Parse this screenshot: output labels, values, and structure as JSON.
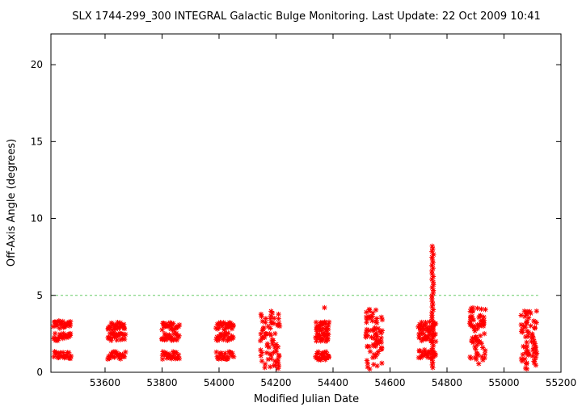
{
  "chart_data": {
    "type": "scatter",
    "title": "SLX 1744-299_300   INTEGRAL Galactic Bulge Monitoring.  Last Update: 22 Oct 2009 10:41",
    "xlabel": "Modified Julian Date",
    "ylabel": "Off-Axis Angle (degrees)",
    "xlim": [
      53410,
      55200
    ],
    "ylim": [
      0,
      22
    ],
    "xticks": [
      "53600",
      "53800",
      "54000",
      "54200",
      "54400",
      "54600",
      "54800",
      "55000",
      "55200"
    ],
    "yticks": [
      "0",
      "5",
      "10",
      "15",
      "20"
    ],
    "reference_line": {
      "y": 5,
      "x_range": [
        53410,
        55120
      ],
      "color": "#66cc66",
      "style": "dashed"
    },
    "marker": {
      "symbol": "asterisk",
      "color": "#ff0000"
    },
    "grid": false,
    "series": [
      {
        "clusters": [
          {
            "x_range": [
              53420,
              53480
            ],
            "y_levels": [
              1.1,
              2.3,
              3.1
            ],
            "y_spread": 0.25
          },
          {
            "x_range": [
              53610,
              53670
            ],
            "y_levels": [
              1.1,
              2.3,
              3.0
            ],
            "y_spread": 0.25
          },
          {
            "x_range": [
              53800,
              53860
            ],
            "y_levels": [
              1.1,
              2.3,
              3.0
            ],
            "y_spread": 0.25
          },
          {
            "x_range": [
              53990,
              54050
            ],
            "y_levels": [
              1.1,
              2.3,
              3.0
            ],
            "y_spread": 0.25
          },
          {
            "x_range": [
              54145,
              54215
            ],
            "y_range": [
              0.2,
              4.1
            ]
          },
          {
            "x_range": [
              54340,
              54385
            ],
            "y_levels": [
              1.1,
              2.3,
              3.0
            ],
            "y_spread": 0.3,
            "extra": [
              [
                54370,
                4.2
              ]
            ]
          },
          {
            "x_range": [
              54515,
              54575
            ],
            "y_range": [
              0.2,
              4.2
            ]
          },
          {
            "x_range": [
              54700,
              54760
            ],
            "y_levels": [
              1.2,
              2.3,
              3.0
            ],
            "y_spread": 0.3,
            "spike": {
              "x": 54750,
              "y_range": [
                0.3,
                8.2
              ]
            }
          },
          {
            "x_range": [
              54880,
              54935
            ],
            "y_range": [
              0.5,
              4.2
            ]
          },
          {
            "x_range": [
              55060,
              55120
            ],
            "y_range": [
              0.2,
              4.0
            ]
          }
        ]
      }
    ]
  }
}
